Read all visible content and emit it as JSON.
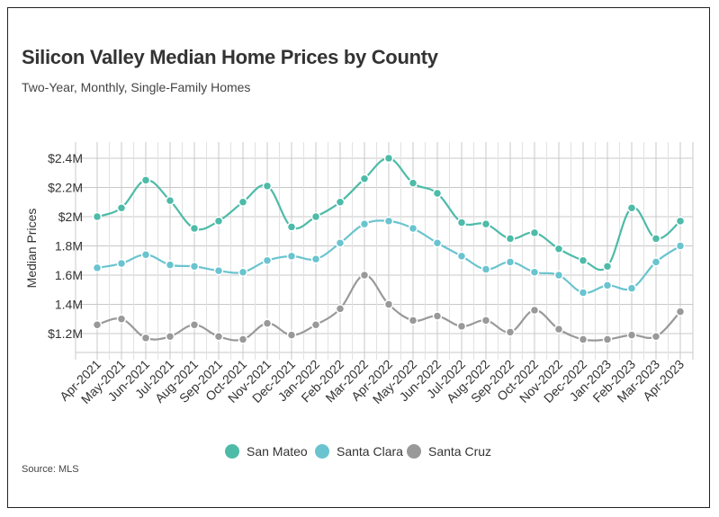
{
  "title": "Silicon Valley Median Home Prices by County",
  "subtitle": "Two-Year, Monthly, Single-Family Homes",
  "source": "Source: MLS",
  "chart_data": {
    "type": "line",
    "ylabel": "Median Prices",
    "ylim": [
      1.1,
      2.4
    ],
    "yticks": [
      1.2,
      1.4,
      1.6,
      1.8,
      2.0,
      2.2,
      2.4
    ],
    "ytick_labels": [
      "$1.2M",
      "1.4M",
      "1.6M",
      "1.8M",
      "$2M",
      "$2.2M",
      "$2.4M"
    ],
    "grid": true,
    "legend_position": "bottom",
    "categories": [
      "Apr-2021",
      "May-2021",
      "Jun-2021",
      "Jul-2021",
      "Aug-2021",
      "Sep-2021",
      "Oct-2021",
      "Nov-2021",
      "Dec-2021",
      "Jan-2022",
      "Feb-2022",
      "Mar-2022",
      "Apr-2022",
      "May-2022",
      "Jun-2022",
      "Jul-2022",
      "Aug-2022",
      "Sep-2022",
      "Oct-2022",
      "Nov-2022",
      "Dec-2022",
      "Jan-2023",
      "Feb-2023",
      "Mar-2023",
      "Apr-2023"
    ],
    "series": [
      {
        "name": "San Mateo",
        "color": "#4dbba8",
        "values": [
          2.0,
          2.06,
          2.25,
          2.11,
          1.92,
          1.97,
          2.1,
          2.21,
          1.93,
          2.0,
          2.1,
          2.26,
          2.4,
          2.23,
          2.16,
          1.96,
          1.95,
          1.85,
          1.89,
          1.78,
          1.7,
          1.66,
          2.06,
          1.85,
          1.97
        ]
      },
      {
        "name": "Santa Clara",
        "color": "#6ac4cf",
        "values": [
          1.65,
          1.68,
          1.74,
          1.67,
          1.66,
          1.63,
          1.62,
          1.7,
          1.73,
          1.71,
          1.82,
          1.95,
          1.97,
          1.92,
          1.82,
          1.73,
          1.64,
          1.69,
          1.62,
          1.6,
          1.48,
          1.53,
          1.51,
          1.69,
          1.8
        ]
      },
      {
        "name": "Santa Cruz",
        "color": "#999999",
        "values": [
          1.26,
          1.3,
          1.17,
          1.18,
          1.26,
          1.18,
          1.16,
          1.27,
          1.19,
          1.26,
          1.37,
          1.6,
          1.4,
          1.29,
          1.32,
          1.25,
          1.29,
          1.21,
          1.36,
          1.23,
          1.16,
          1.16,
          1.19,
          1.18,
          1.35
        ]
      }
    ]
  }
}
